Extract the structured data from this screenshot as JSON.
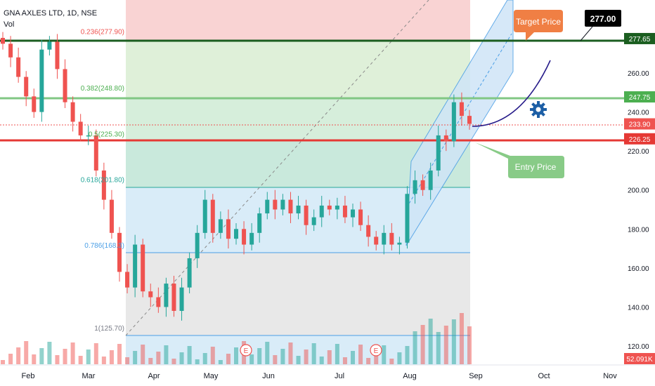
{
  "header": {
    "title": "GNA AXLES LTD, 1D, NSE",
    "vol_label": "Vol"
  },
  "colors": {
    "up": "#26a69a",
    "down": "#ef5350",
    "fib_top_zone": "#f9d3d3",
    "fib_green_zone": "#dff0d9",
    "fib_green2_zone": "#c9e9dc",
    "fib_blue_zone": "#d9ecf8",
    "fib_grey_zone": "#e8e8e8",
    "target_bubble": "#f07f44",
    "entry_bubble": "#88cb87",
    "price_line_green": "#1b5e20",
    "price_line_red": "#e53935",
    "curve": "#271c8a",
    "gear": "#1d5fa6"
  },
  "annotations": {
    "target_label": "Target Price",
    "entry_label": "Entry Price",
    "price_callout": "277.00",
    "earnings_marker": "E",
    "gear_icon": "gear-icon"
  },
  "fib_labels": [
    {
      "text": "0.236(277.90)",
      "price": 277.9
    },
    {
      "text": "0.382(248.80)",
      "price": 248.8
    },
    {
      "text": "0.5(225.30)",
      "price": 225.3
    },
    {
      "text": "0.618(201.80)",
      "price": 201.8
    },
    {
      "text": "0.786(168.3)",
      "price": 168.3
    },
    {
      "text": "1(125.70)",
      "price": 125.7
    }
  ],
  "price_tags": [
    {
      "text": "277.65",
      "price": 277.65,
      "color": "#1b5e20"
    },
    {
      "text": "247.75",
      "price": 247.75,
      "color": "#4caf50"
    },
    {
      "text": "233.90",
      "price": 233.9,
      "color": "#ef5350"
    },
    {
      "text": "226.25",
      "price": 226.25,
      "color": "#e53935"
    }
  ],
  "volume_tag": {
    "text": "52.091K",
    "color": "#ef5350"
  },
  "chart_data": {
    "type": "candlestick",
    "title": "GNA AXLES LTD, 1D, NSE",
    "y_axis_ticks": [
      "120.00",
      "140.00",
      "160.00",
      "180.00",
      "200.00",
      "220.00",
      "240.00",
      "260.00"
    ],
    "x_axis_ticks": [
      "Feb",
      "Mar",
      "Apr",
      "May",
      "Jun",
      "Jul",
      "Aug",
      "Sep",
      "Oct",
      "Nov"
    ],
    "ylim": [
      115,
      300
    ],
    "price_series_approx": [
      [
        "Feb",
        275
      ],
      [
        "Feb",
        268
      ],
      [
        "Feb",
        258
      ],
      [
        "Feb",
        248
      ],
      [
        "Feb",
        240
      ],
      [
        "Feb",
        272
      ],
      [
        "Feb",
        276
      ],
      [
        "Feb",
        262
      ],
      [
        "Feb",
        245
      ],
      [
        "Feb",
        235
      ],
      [
        "Feb",
        228
      ],
      [
        "Mar",
        228
      ],
      [
        "Mar",
        210
      ],
      [
        "Mar",
        195
      ],
      [
        "Mar",
        178
      ],
      [
        "Mar",
        158
      ],
      [
        "Mar",
        150
      ],
      [
        "Mar",
        172
      ],
      [
        "Apr",
        148
      ],
      [
        "Apr",
        145
      ],
      [
        "Apr",
        140
      ],
      [
        "Apr",
        152
      ],
      [
        "Apr",
        138
      ],
      [
        "Apr",
        150
      ],
      [
        "Apr",
        165
      ],
      [
        "Apr",
        178
      ],
      [
        "Apr",
        195
      ],
      [
        "May",
        178
      ],
      [
        "May",
        185
      ],
      [
        "May",
        175
      ],
      [
        "May",
        180
      ],
      [
        "May",
        172
      ],
      [
        "May",
        178
      ],
      [
        "May",
        188
      ],
      [
        "May",
        195
      ],
      [
        "Jun",
        190
      ],
      [
        "Jun",
        195
      ],
      [
        "Jun",
        188
      ],
      [
        "Jun",
        192
      ],
      [
        "Jun",
        182
      ],
      [
        "Jun",
        186
      ],
      [
        "Jun",
        192
      ],
      [
        "Jul",
        190
      ],
      [
        "Jul",
        192
      ],
      [
        "Jul",
        186
      ],
      [
        "Jul",
        190
      ],
      [
        "Jul",
        182
      ],
      [
        "Jul",
        176
      ],
      [
        "Jul",
        172
      ],
      [
        "Jul",
        178
      ],
      [
        "Aug",
        172
      ],
      [
        "Aug",
        173
      ],
      [
        "Aug",
        198
      ],
      [
        "Aug",
        205
      ],
      [
        "Aug",
        200
      ],
      [
        "Aug",
        210
      ],
      [
        "Aug",
        228
      ],
      [
        "Aug",
        225
      ],
      [
        "Aug",
        245
      ],
      [
        "Aug",
        238
      ],
      [
        "Aug",
        233.9
      ]
    ]
  }
}
